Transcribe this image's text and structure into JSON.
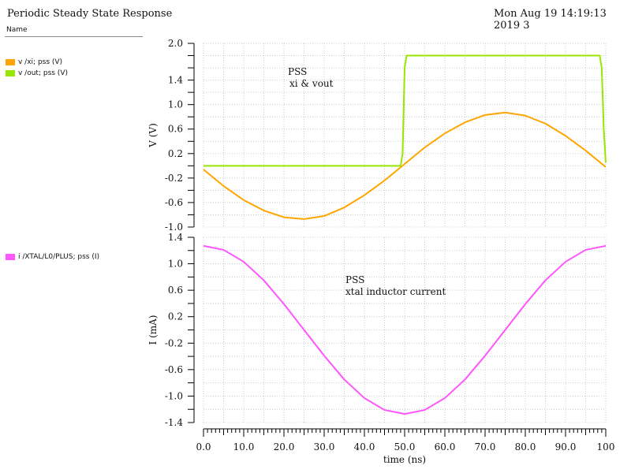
{
  "header": {
    "title": "Periodic Steady State Response",
    "timestamp": "Mon Aug 19 14:19:13 2019   3"
  },
  "legend": {
    "name_header": "Name"
  },
  "colors": {
    "xi": "#ffa500",
    "out": "#99e600",
    "current": "#ff55ff"
  },
  "chart_data": [
    {
      "type": "line",
      "title": "",
      "annotation": [
        "PSS",
        "xi & vout"
      ],
      "ylabel": "V (V)",
      "ylim": [
        -1.0,
        2.0
      ],
      "yticks": [
        "2.0",
        "1.4",
        "1.0",
        "0.6",
        "0.2",
        "-0.2",
        "-0.6",
        "-1.0"
      ],
      "grid": true,
      "x": [
        0,
        5,
        10,
        15,
        20,
        25,
        30,
        35,
        40,
        45,
        50,
        55,
        60,
        65,
        70,
        75,
        80,
        85,
        90,
        95,
        100
      ],
      "series": [
        {
          "name": "v /xi; pss (V)",
          "values": [
            -0.06,
            -0.33,
            -0.56,
            -0.73,
            -0.84,
            -0.87,
            -0.82,
            -0.68,
            -0.48,
            -0.24,
            0.03,
            0.3,
            0.53,
            0.71,
            0.83,
            0.87,
            0.82,
            0.69,
            0.49,
            0.25,
            -0.02
          ]
        },
        {
          "name": "v /out; pss (V)",
          "x": [
            0,
            49,
            49.5,
            50,
            50.5,
            98.5,
            99,
            99.5,
            100
          ],
          "values": [
            0,
            0,
            0.2,
            1.6,
            1.8,
            1.8,
            1.6,
            0.6,
            0.05
          ]
        }
      ]
    },
    {
      "type": "line",
      "title": "",
      "annotation": [
        "PSS",
        "xtal inductor current"
      ],
      "ylabel": "I (mA)",
      "ylim": [
        -1.4,
        1.4
      ],
      "yticks": [
        "1.4",
        "1.0",
        "0.6",
        "0.2",
        "-0.2",
        "-0.6",
        "-1.0",
        "-1.4"
      ],
      "grid": true,
      "xlabel": "time (ns)",
      "xlim": [
        0,
        100
      ],
      "xticks": [
        "0.0",
        "10.0",
        "20.0",
        "30.0",
        "40.0",
        "50.0",
        "60.0",
        "70.0",
        "80.0",
        "90.0",
        "100"
      ],
      "x": [
        0,
        5,
        10,
        15,
        20,
        25,
        30,
        35,
        40,
        45,
        50,
        55,
        60,
        65,
        70,
        75,
        80,
        85,
        90,
        95,
        100
      ],
      "series": [
        {
          "name": "i /XTAL/L0/PLUS; pss (I)",
          "values": [
            1.27,
            1.21,
            1.03,
            0.75,
            0.39,
            0,
            -0.39,
            -0.75,
            -1.03,
            -1.21,
            -1.27,
            -1.21,
            -1.03,
            -0.75,
            -0.39,
            0,
            0.39,
            0.75,
            1.03,
            1.21,
            1.27
          ]
        }
      ]
    }
  ]
}
